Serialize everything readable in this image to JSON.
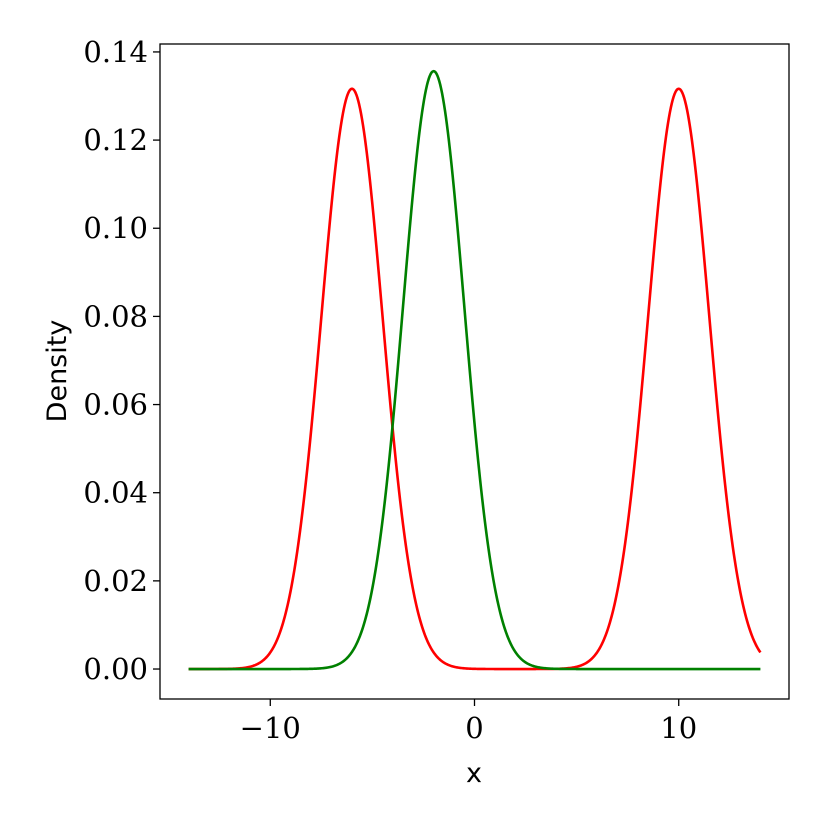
{
  "chart_data": {
    "type": "line",
    "title": "",
    "xlabel": "x",
    "ylabel": "Density",
    "xlim": [
      -15.4,
      15.4
    ],
    "ylim": [
      -0.0068,
      0.1418
    ],
    "xticks": [
      -10,
      0,
      10
    ],
    "xtick_labels": [
      "−10",
      "0",
      "10"
    ],
    "yticks": [
      0.0,
      0.02,
      0.04,
      0.06,
      0.08,
      0.1,
      0.12,
      0.14
    ],
    "ytick_labels": [
      "0.00",
      "0.02",
      "0.04",
      "0.06",
      "0.08",
      "0.10",
      "0.12",
      "0.14"
    ],
    "grid": false,
    "legend": "none",
    "x_range": [
      -14,
      14
    ],
    "series": [
      {
        "color": "#ff0000",
        "components": [
          {
            "mean": -6,
            "sd": 1.5,
            "weight": 0.495
          },
          {
            "mean": 10,
            "sd": 1.5,
            "weight": 0.495
          }
        ]
      },
      {
        "color": "#008000",
        "components": [
          {
            "mean": -2,
            "sd": 1.5,
            "weight": 0.51
          }
        ]
      }
    ]
  }
}
